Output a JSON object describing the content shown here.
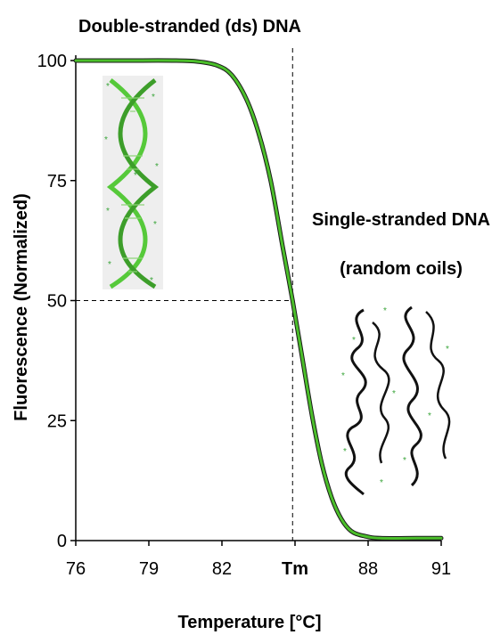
{
  "chart_data": {
    "type": "line",
    "title": "",
    "xlabel": "Temperature [°C]",
    "ylabel": "Fluorescence (Normalized)",
    "xlim": [
      76,
      91
    ],
    "ylim": [
      0,
      100
    ],
    "x_ticks": [
      76,
      79,
      82,
      85,
      88,
      91
    ],
    "x_tick_labels": [
      "76",
      "79",
      "82",
      "Tm",
      "88",
      "91"
    ],
    "y_ticks": [
      0,
      25,
      50,
      75,
      100
    ],
    "y_tick_labels": [
      "0",
      "25",
      "50",
      "75",
      "100"
    ],
    "grid": false,
    "series": [
      {
        "color": "#4bbf2a",
        "x": [
          76,
          78,
          80,
          81,
          81.8,
          82.4,
          83,
          83.5,
          84,
          84.5,
          84.9,
          85.3,
          85.7,
          86.1,
          86.5,
          86.9,
          87.3,
          87.8,
          88.5,
          90,
          91
        ],
        "y": [
          100,
          100,
          100,
          99.8,
          99,
          97,
          92,
          85,
          75,
          61,
          50,
          38,
          26,
          16,
          9,
          4.5,
          2,
          1,
          0.5,
          0.5,
          0.5
        ]
      }
    ],
    "reference_lines": {
      "tm_x": 84.9,
      "half_y": 50
    },
    "annotations": {
      "ds": "Double-stranded (ds) DNA",
      "ss_line1": "Single-stranded DNA",
      "ss_line2": "(random coils)"
    },
    "colors": {
      "curve": "#4bbf2a",
      "helix": "#56c93a",
      "coil": "#111111",
      "dots": "#3aa53a"
    }
  }
}
